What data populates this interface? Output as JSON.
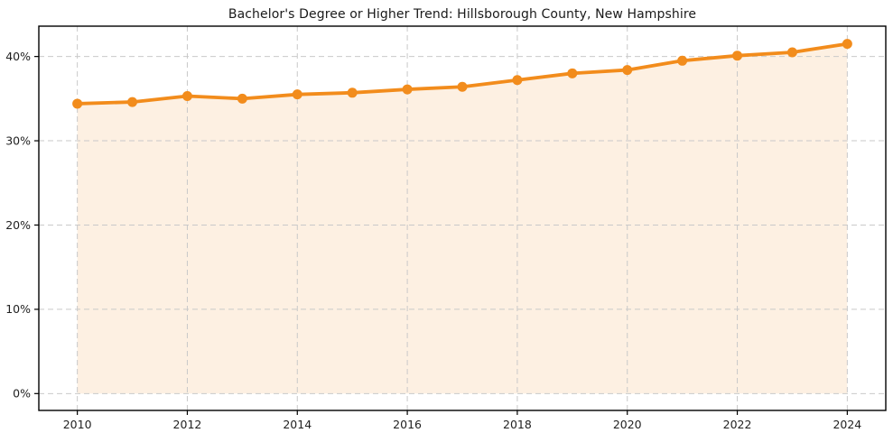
{
  "chart_data": {
    "type": "line",
    "title": "Bachelor's Degree or Higher Trend: Hillsborough County, New Hampshire",
    "xlabel": "",
    "ylabel": "",
    "x": [
      2010,
      2011,
      2012,
      2013,
      2014,
      2015,
      2016,
      2017,
      2018,
      2019,
      2020,
      2021,
      2022,
      2023,
      2024
    ],
    "values": [
      34.4,
      34.6,
      35.3,
      35.0,
      35.5,
      35.7,
      36.1,
      36.4,
      37.2,
      38.0,
      38.4,
      39.5,
      40.1,
      40.5,
      41.5
    ],
    "x_ticks": [
      2010,
      2012,
      2014,
      2016,
      2018,
      2020,
      2022,
      2024
    ],
    "x_tick_labels": [
      "2010",
      "2012",
      "2014",
      "2016",
      "2018",
      "2020",
      "2022",
      "2024"
    ],
    "y_ticks": [
      0,
      10,
      20,
      30,
      40
    ],
    "y_tick_labels": [
      "0%",
      "10%",
      "20%",
      "30%",
      "40%"
    ],
    "xlim": [
      2009.3,
      2024.7
    ],
    "ylim": [
      -2,
      43.6
    ],
    "grid": true,
    "legend": "none",
    "fill_to_zero": true,
    "colors": {
      "line": "#f28c1c",
      "marker": "#f28c1c",
      "fill": "#f28c1c",
      "fill_opacity": 0.13,
      "grid": "#c9c9c9",
      "frame": "#000000",
      "tick_text": "#222222"
    }
  }
}
